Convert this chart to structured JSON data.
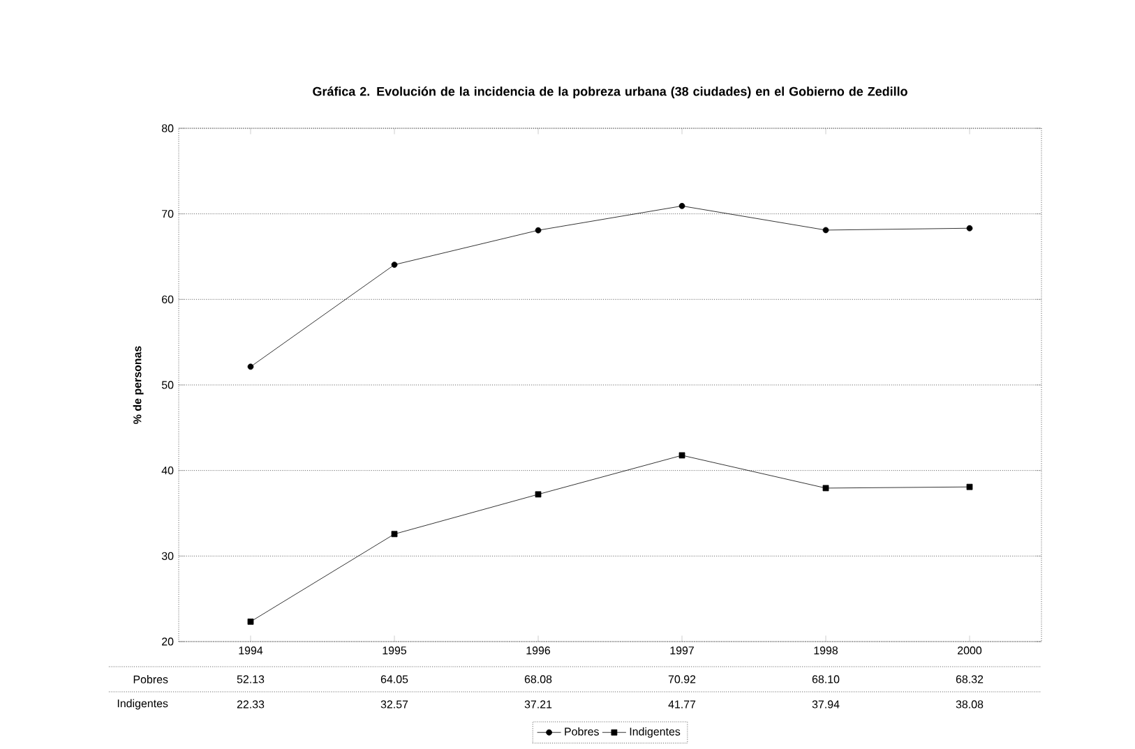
{
  "chart_data": {
    "type": "line",
    "title": "Gráfica 2. Evolución de la incidencia de la pobreza urbana (38 ciudades) en el Gobierno de Zedillo",
    "ylabel": "% de personas",
    "categories": [
      "1994",
      "1995",
      "1996",
      "1997",
      "1998",
      "2000"
    ],
    "ylim": [
      20,
      80
    ],
    "yticks": [
      20,
      30,
      40,
      50,
      60,
      70,
      80
    ],
    "grid": "y",
    "legend": "bottom",
    "series": [
      {
        "name": "Pobres",
        "color": "#000000",
        "marker": "circle",
        "values": [
          52.13,
          64.05,
          68.08,
          70.92,
          68.1,
          68.32
        ],
        "value_labels": [
          "52.13",
          "64.05",
          "68.08",
          "70.92",
          "68.10",
          "68.32"
        ]
      },
      {
        "name": "Indigentes",
        "color": "#000000",
        "marker": "square",
        "values": [
          22.33,
          32.57,
          37.21,
          41.77,
          37.94,
          38.08
        ],
        "value_labels": [
          "22.33",
          "32.57",
          "37.21",
          "41.77",
          "37.94",
          "38.08"
        ]
      }
    ]
  }
}
